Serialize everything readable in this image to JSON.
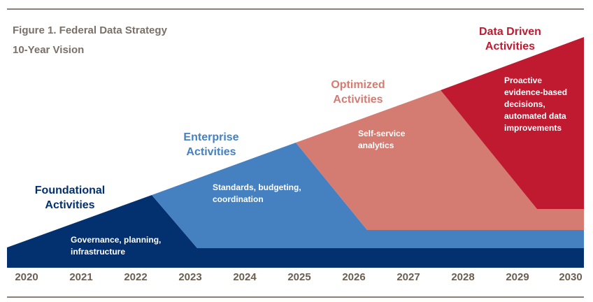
{
  "title": "Figure 1. Federal Data Strategy",
  "subtitle": "10-Year Vision",
  "colors": {
    "foundational": "#03306f",
    "enterprise": "#4580c1",
    "optimized": "#d47c72",
    "data_driven": "#c01a30"
  },
  "phases": [
    {
      "heading": "Foundational\nActivities",
      "description": "Governance, planning,\ninfrastructure"
    },
    {
      "heading": "Enterprise\nActivities",
      "description": "Standards, budgeting,\ncoordination"
    },
    {
      "heading": "Optimized\nActivities",
      "description": "Self-service\nanalytics"
    },
    {
      "heading": "Data Driven\nActivities",
      "description": "Proactive\nevidence-based\ndecisions,\nautomated data\nimprovements"
    }
  ],
  "years": [
    "2020",
    "2021",
    "2022",
    "2023",
    "2024",
    "2025",
    "2026",
    "2027",
    "2028",
    "2029",
    "2030"
  ]
}
